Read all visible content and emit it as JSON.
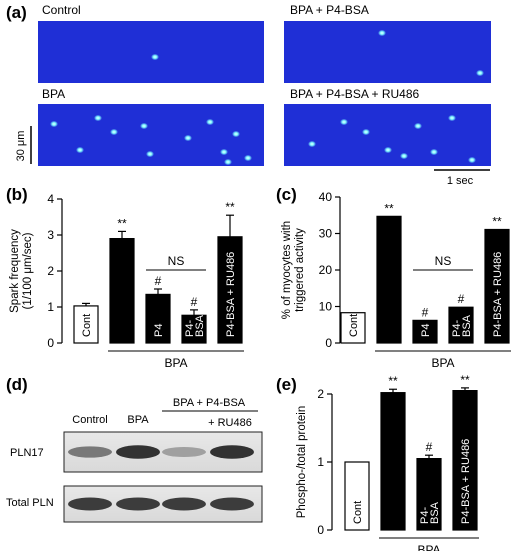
{
  "panel_letters": {
    "a": "(a)",
    "b": "(b)",
    "c": "(c)",
    "d": "(d)",
    "e": "(e)"
  },
  "panel_a": {
    "images": [
      {
        "label": "Control",
        "sparks": 1
      },
      {
        "label": "BPA + P4-BSA",
        "sparks": 2
      },
      {
        "label": "BPA",
        "sparks": 12
      },
      {
        "label": "BPA + P4-BSA + RU486",
        "sparks": 9
      }
    ],
    "scale_y": "30 μm",
    "scale_x": "1 sec",
    "colors": {
      "background": "#1f2fd6",
      "spark": "#7ef7ff"
    }
  },
  "chart_data": [
    {
      "panel": "b",
      "type": "bar",
      "categories": [
        "Cont",
        "BPA",
        "P4",
        "P4-BSA",
        "P4-BSA + RU486"
      ],
      "bar_labels": [
        "Cont",
        "",
        "P4",
        "P4-\nBSA",
        "P4-BSA + RU486"
      ],
      "values": [
        1.03,
        2.9,
        1.35,
        0.77,
        2.95
      ],
      "errors": [
        0.07,
        0.2,
        0.15,
        0.15,
        0.6
      ],
      "annotations": [
        "",
        "**",
        "#",
        "#",
        "**"
      ],
      "ylabel": "Spark frequency\n(1/100 μm/sec)",
      "ylim": [
        0,
        4
      ],
      "yticks": [
        "0",
        "1",
        "2",
        "3",
        "4"
      ],
      "group_label": "BPA",
      "ns_label": "NS",
      "colors": [
        "#ffffff",
        "#000000",
        "#000000",
        "#000000",
        "#000000"
      ]
    },
    {
      "panel": "c",
      "type": "bar",
      "categories": [
        "Cont",
        "BPA",
        "P4",
        "P4-BSA",
        "P4-BSA + RU486"
      ],
      "bar_labels": [
        "Cont",
        "",
        "P4",
        "P4-\nBSA",
        "P4-BSA + RU486"
      ],
      "values": [
        8.3,
        34.7,
        6.2,
        9.8,
        31.1
      ],
      "annotations": [
        "",
        "**",
        "#",
        "#",
        "**"
      ],
      "ylabel": "% of myocytes with\ntriggered activity",
      "ylim": [
        0,
        40
      ],
      "yticks": [
        "0",
        "10",
        "20",
        "30",
        "40"
      ],
      "group_label": "BPA",
      "ns_label": "NS",
      "colors": [
        "#ffffff",
        "#000000",
        "#000000",
        "#000000",
        "#000000"
      ]
    },
    {
      "panel": "e",
      "type": "bar",
      "categories": [
        "Cont",
        "BPA",
        "P4-BSA",
        "P4-BSA + RU486"
      ],
      "bar_labels": [
        "Cont",
        "",
        "P4-\nBSA",
        "P4-BSA + RU486"
      ],
      "values": [
        1.0,
        2.02,
        1.05,
        2.05
      ],
      "errors": [
        0,
        0.05,
        0.05,
        0.04
      ],
      "annotations": [
        "",
        "**",
        "#",
        "**"
      ],
      "ylabel": "Phospho-/total protein",
      "ylim": [
        0,
        2
      ],
      "yticks": [
        "0",
        "1",
        "2"
      ],
      "group_label": "BPA",
      "colors": [
        "#ffffff",
        "#000000",
        "#000000",
        "#000000"
      ]
    }
  ],
  "panel_d": {
    "lane_labels": [
      "Control",
      "BPA"
    ],
    "group_label": "BPA + P4-BSA",
    "sub_label": "+ RU486",
    "rows": [
      {
        "label": "PLN17",
        "band_intensity": [
          0.55,
          0.9,
          0.35,
          0.9
        ]
      },
      {
        "label": "Total PLN",
        "band_intensity": [
          0.85,
          0.85,
          0.85,
          0.85
        ]
      }
    ]
  }
}
